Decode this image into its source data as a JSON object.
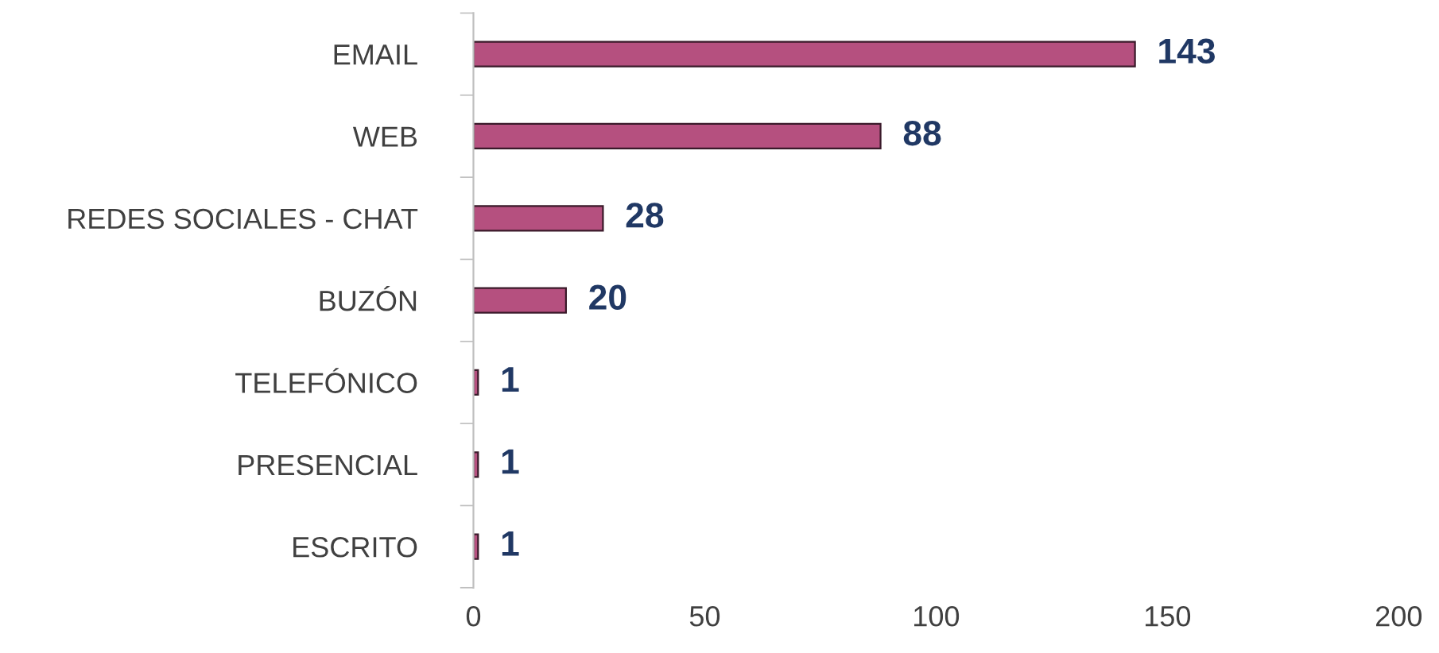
{
  "chart_data": {
    "type": "bar",
    "orientation": "horizontal",
    "categories": [
      "EMAIL",
      "WEB",
      "REDES SOCIALES - CHAT",
      "BUZÓN",
      "TELEFÓNICO",
      "PRESENCIAL",
      "ESCRITO"
    ],
    "values": [
      143,
      88,
      28,
      20,
      1,
      1,
      1
    ],
    "color": "#b5507f",
    "xlim": [
      0,
      200
    ],
    "xticks": [
      0,
      50,
      100,
      150,
      200
    ],
    "grid": false,
    "data_labels": true
  }
}
